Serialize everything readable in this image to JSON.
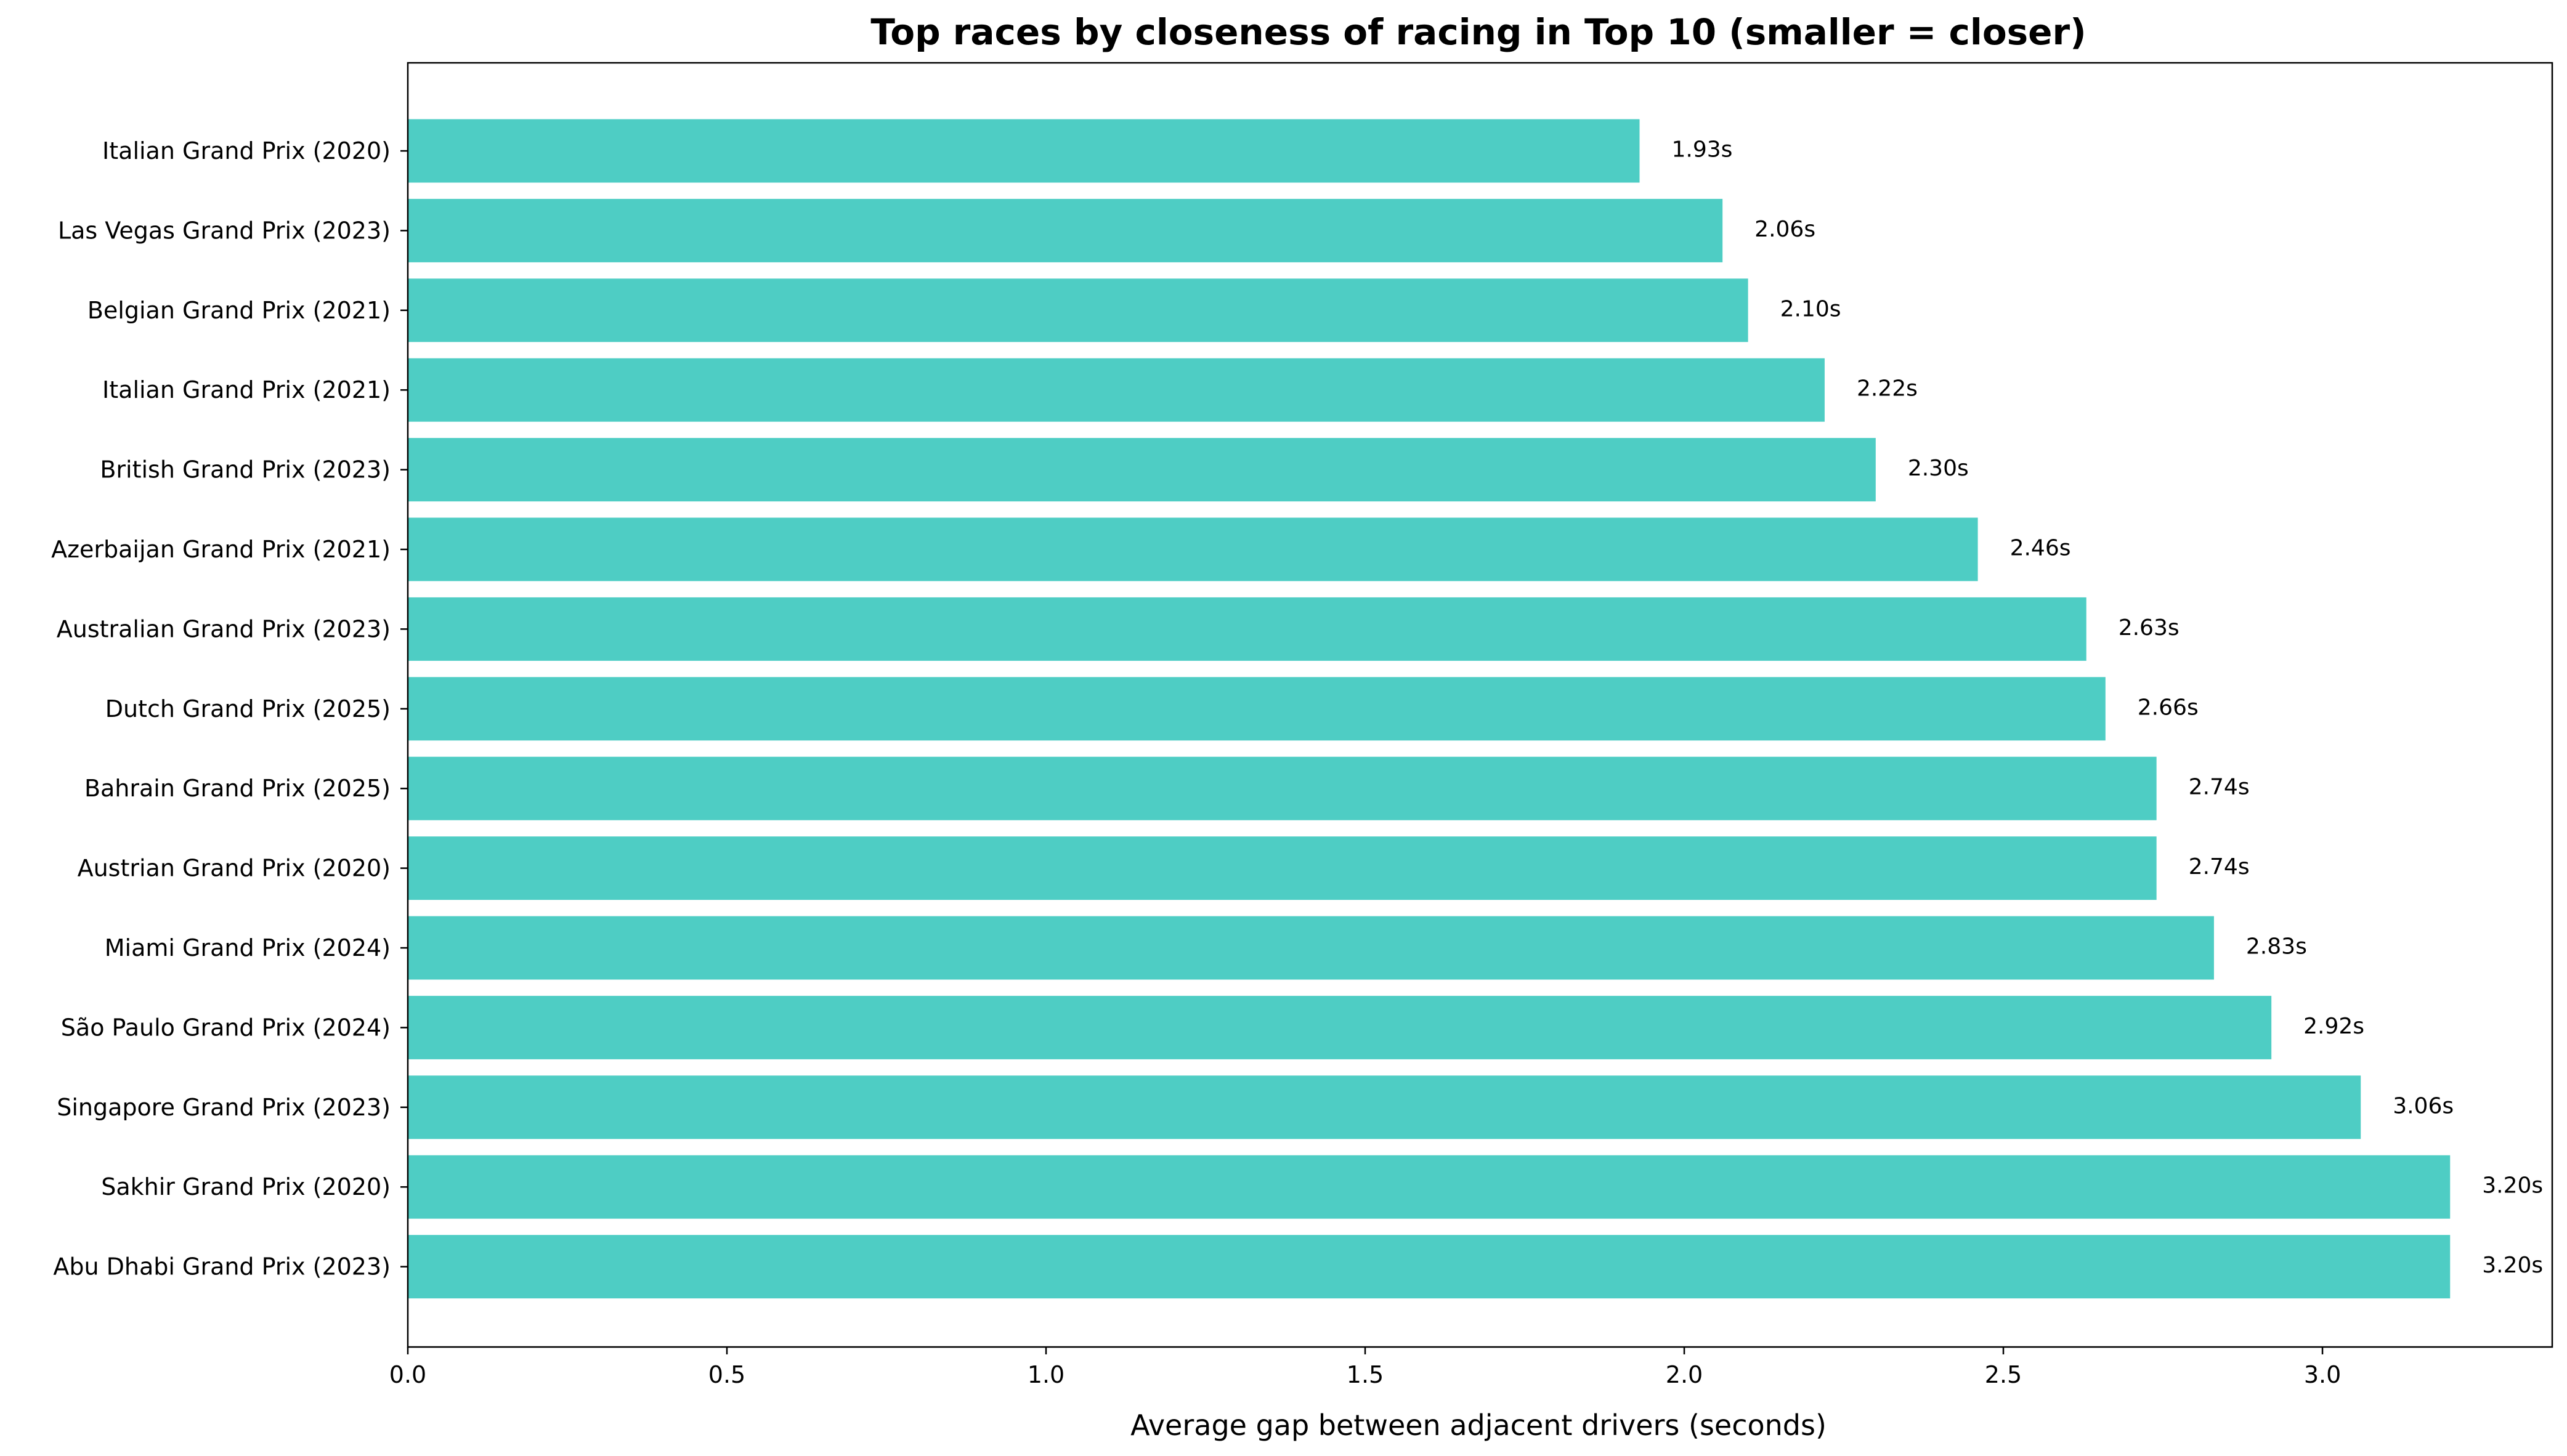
{
  "chart_data": {
    "type": "bar",
    "orientation": "horizontal",
    "title": "Top races by closeness of racing in Top 10 (smaller = closer)",
    "xlabel": "Average gap between adjacent drivers (seconds)",
    "ylabel": "",
    "xlim": [
      0,
      3.36
    ],
    "xticks": [
      0.0,
      0.5,
      1.0,
      1.5,
      2.0,
      2.5,
      3.0
    ],
    "xtick_labels": [
      "0.0",
      "0.5",
      "1.0",
      "1.5",
      "2.0",
      "2.5",
      "3.0"
    ],
    "bar_color": "#4ECDC4",
    "value_suffix": "s",
    "grid": false,
    "legend": "none",
    "categories": [
      "Italian Grand Prix (2020)",
      "Las Vegas Grand Prix (2023)",
      "Belgian Grand Prix (2021)",
      "Italian Grand Prix (2021)",
      "British Grand Prix (2023)",
      "Azerbaijan Grand Prix (2021)",
      "Australian Grand Prix (2023)",
      "Dutch Grand Prix (2025)",
      "Bahrain Grand Prix (2025)",
      "Austrian Grand Prix (2020)",
      "Miami Grand Prix (2024)",
      "São Paulo Grand Prix (2024)",
      "Singapore Grand Prix (2023)",
      "Sakhir Grand Prix (2020)",
      "Abu Dhabi Grand Prix (2023)"
    ],
    "values": [
      1.93,
      2.06,
      2.1,
      2.22,
      2.3,
      2.46,
      2.63,
      2.66,
      2.74,
      2.74,
      2.83,
      2.92,
      3.06,
      3.2,
      3.2
    ],
    "value_labels": [
      "1.93s",
      "2.06s",
      "2.10s",
      "2.22s",
      "2.30s",
      "2.46s",
      "2.63s",
      "2.66s",
      "2.74s",
      "2.74s",
      "2.83s",
      "2.92s",
      "3.06s",
      "3.20s",
      "3.20s"
    ]
  }
}
